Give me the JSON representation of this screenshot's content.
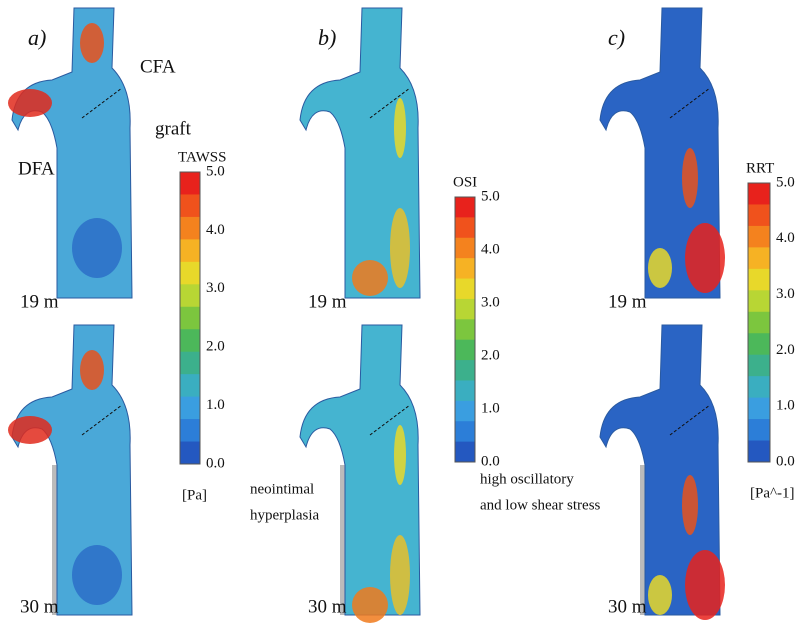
{
  "panels": [
    {
      "label": "a)",
      "colorbar": {
        "title": "TAWSS",
        "ticks": [
          "5.0",
          "4.0",
          "3.0",
          "2.0",
          "1.0",
          "0.0"
        ],
        "unit": "[Pa]"
      },
      "times": [
        "19 m",
        "30 m"
      ],
      "annotations": [
        "CFA",
        "graft",
        "DFA"
      ]
    },
    {
      "label": "b)",
      "colorbar": {
        "title": "OSI",
        "ticks": [
          "5.0",
          "4.0",
          "3.0",
          "2.0",
          "1.0",
          "0.0"
        ]
      },
      "times": [
        "19 m",
        "30 m"
      ],
      "annotations": [
        "neointimal",
        "hyperplasia"
      ]
    },
    {
      "label": "c)",
      "colorbar": {
        "title": "RRT",
        "ticks": [
          "5.0",
          "4.0",
          "3.0",
          "2.0",
          "1.0",
          "0.0"
        ],
        "unit": "[Pa^-1]"
      },
      "times": [
        "19 m",
        "30 m"
      ],
      "annotations": [
        "high oscillatory",
        "and low shear stress"
      ]
    }
  ]
}
